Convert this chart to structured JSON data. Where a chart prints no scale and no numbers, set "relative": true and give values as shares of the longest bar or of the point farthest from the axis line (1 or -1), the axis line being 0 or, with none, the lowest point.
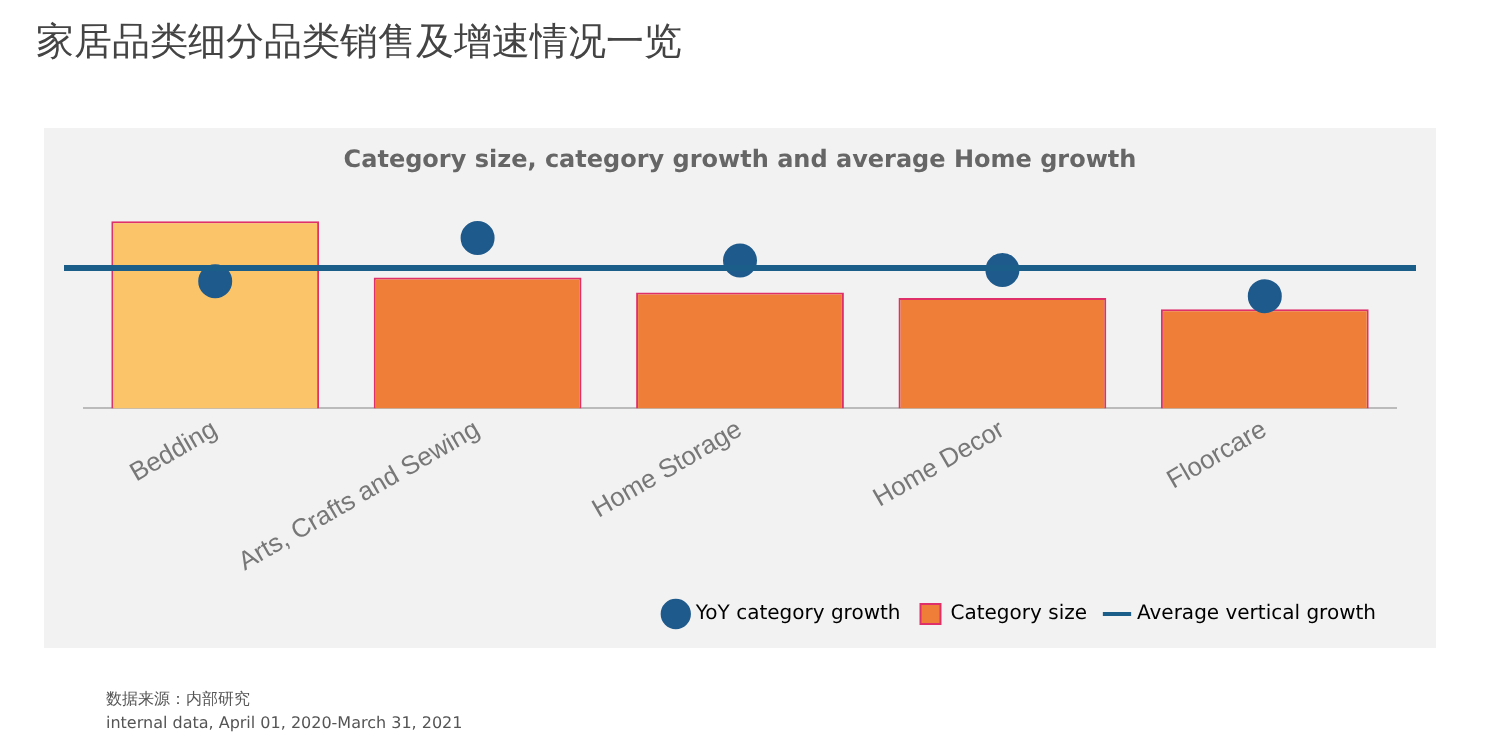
{
  "chart_data": {
    "type": "bar",
    "title": "家居品类细分品类销售及增速情况一览",
    "subtitle": "Category size, category growth and average Home growth",
    "relative": true,
    "categories": [
      "Bedding",
      "Arts, Crafts and Sewing",
      "Home Storage",
      "Home Decor",
      "Floorcare"
    ],
    "series": [
      {
        "name": "YoY category growth",
        "type": "scatter",
        "color": "#1f5a8c",
        "values": [
          0.68,
          0.91,
          0.79,
          0.74,
          0.6
        ]
      },
      {
        "name": "Category size",
        "colors": [
          "#fbc469",
          "#ef7f38",
          "#ef7f38",
          "#ef7f38",
          "#ef7f38"
        ],
        "values": [
          1,
          0.7,
          0.62,
          0.59,
          0.53
        ]
      }
    ],
    "ref_lines": [
      {
        "axis": "y",
        "value": 0.75,
        "label": "Average vertical growth",
        "color": "#1b5e8a"
      }
    ],
    "marker": "circle",
    "grid": false,
    "legend": "bottom right",
    "annotations": [
      "数据来源：内部研究",
      "internal data, April 01, 2020-March 31, 2021"
    ]
  }
}
